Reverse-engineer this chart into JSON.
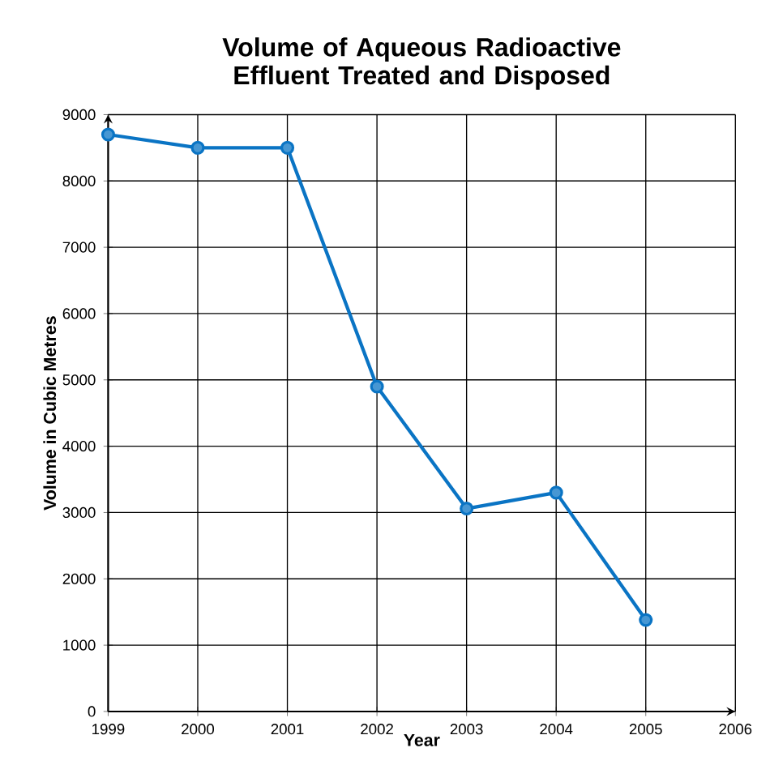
{
  "chart_data": {
    "type": "line",
    "title": "Volume of Aqueous Radioactive Effluent Treated and Disposed",
    "xlabel": "Year",
    "ylabel": "Volume in Cubic Metres",
    "x": [
      1999,
      2000,
      2001,
      2002,
      2003,
      2004,
      2005
    ],
    "series": [
      {
        "color": "#0a74c4",
        "values": [
          8700,
          8500,
          8500,
          4900,
          3060,
          3300,
          1380
        ]
      }
    ],
    "xlim": [
      1999,
      2006
    ],
    "xticks": [
      1999,
      2000,
      2001,
      2002,
      2003,
      2004,
      2005,
      2006
    ],
    "ylim": [
      0,
      9000
    ],
    "yticks": [
      0,
      1000,
      2000,
      3000,
      4000,
      5000,
      6000,
      7000,
      8000,
      9000
    ],
    "grid": true,
    "marker": "circle",
    "line_style": "solid"
  }
}
